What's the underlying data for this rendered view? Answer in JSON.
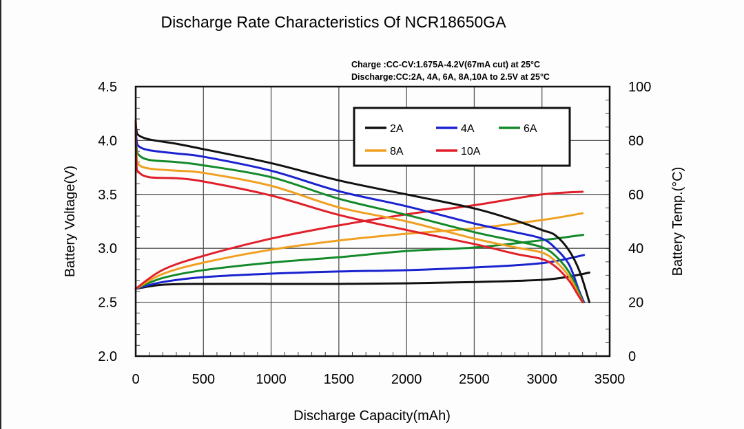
{
  "chart_data": {
    "type": "line",
    "title": "Discharge Rate Characteristics Of NCR18650GA",
    "annotations": [
      "Charge :CC-CV:1.675A-4.2V(67mA cut) at 25°C",
      "Discharge:CC:2A, 4A, 6A, 8A,10A to 2.5V at 25°C"
    ],
    "xlabel": "Discharge Capacity(mAh)",
    "ylabel": "Battery Voltage(V)",
    "y2label": "Battery Temp.(°C)",
    "xlim": [
      0,
      3500
    ],
    "ylim": [
      2.0,
      4.5
    ],
    "y2lim": [
      0,
      100
    ],
    "x_ticks": [
      "0",
      "500",
      "1000",
      "1500",
      "2000",
      "2500",
      "3000",
      "3500"
    ],
    "y_ticks": [
      "2.0",
      "2.5",
      "3.0",
      "3.5",
      "4.0",
      "4.5"
    ],
    "y2_ticks": [
      "0",
      "20",
      "40",
      "60",
      "80",
      "100"
    ],
    "grid": true,
    "legend_position": "top-right",
    "series": [
      {
        "name": "2A",
        "color": "#111111",
        "voltage": {
          "x": [
            0,
            5,
            20,
            100,
            300,
            500,
            1000,
            1500,
            2000,
            2500,
            2800,
            3000,
            3100,
            3200,
            3280,
            3350
          ],
          "y": [
            4.18,
            4.1,
            4.05,
            4.01,
            3.97,
            3.92,
            3.79,
            3.63,
            3.5,
            3.37,
            3.26,
            3.17,
            3.12,
            2.98,
            2.78,
            2.5
          ]
        },
        "temperature": {
          "x": [
            0,
            200,
            500,
            1000,
            1500,
            2000,
            2500,
            3000,
            3200,
            3350
          ],
          "y": [
            25,
            26.5,
            26.8,
            26.8,
            26.8,
            27,
            27.5,
            28.3,
            29.5,
            31
          ]
        }
      },
      {
        "name": "4A",
        "color": "#1a22d0",
        "voltage": {
          "x": [
            0,
            5,
            20,
            100,
            300,
            500,
            1000,
            1500,
            2000,
            2500,
            2800,
            3000,
            3100,
            3200,
            3270,
            3310
          ],
          "y": [
            4.12,
            4.02,
            3.95,
            3.91,
            3.88,
            3.85,
            3.72,
            3.53,
            3.39,
            3.23,
            3.15,
            3.09,
            3.0,
            2.85,
            2.62,
            2.5
          ]
        },
        "temperature": {
          "x": [
            0,
            200,
            500,
            1000,
            1500,
            2000,
            2500,
            3000,
            3310
          ],
          "y": [
            25,
            27.5,
            29.3,
            30.6,
            31.4,
            31.9,
            32.9,
            34.5,
            37.5
          ]
        }
      },
      {
        "name": "6A",
        "color": "#138a2a",
        "voltage": {
          "x": [
            0,
            5,
            20,
            100,
            300,
            500,
            1000,
            1500,
            2000,
            2500,
            2800,
            3000,
            3100,
            3200,
            3270,
            3305
          ],
          "y": [
            4.08,
            3.95,
            3.87,
            3.82,
            3.8,
            3.77,
            3.66,
            3.46,
            3.31,
            3.15,
            3.07,
            3.01,
            2.93,
            2.78,
            2.6,
            2.5
          ]
        },
        "temperature": {
          "x": [
            0,
            200,
            500,
            1000,
            1500,
            2000,
            2500,
            3000,
            3305
          ],
          "y": [
            25,
            29,
            31.9,
            34.7,
            36.7,
            39,
            40.3,
            43,
            45
          ]
        }
      },
      {
        "name": "8A",
        "color": "#f0a020",
        "voltage": {
          "x": [
            0,
            5,
            20,
            100,
            300,
            500,
            1000,
            1500,
            2000,
            2500,
            2800,
            3000,
            3100,
            3200,
            3260,
            3300
          ],
          "y": [
            4.05,
            3.88,
            3.78,
            3.74,
            3.72,
            3.7,
            3.58,
            3.38,
            3.25,
            3.09,
            3.01,
            2.96,
            2.88,
            2.74,
            2.6,
            2.5
          ]
        },
        "temperature": {
          "x": [
            0,
            200,
            500,
            1000,
            1500,
            2000,
            2500,
            3000,
            3300
          ],
          "y": [
            25,
            30.5,
            34.7,
            39.5,
            42.9,
            45.4,
            47.4,
            50.5,
            53
          ]
        }
      },
      {
        "name": "10A",
        "color": "#e0202a",
        "voltage": {
          "x": [
            0,
            5,
            20,
            100,
            300,
            500,
            1000,
            1500,
            2000,
            2500,
            2800,
            3000,
            3100,
            3200,
            3260,
            3300
          ],
          "y": [
            4.19,
            3.8,
            3.71,
            3.66,
            3.65,
            3.62,
            3.49,
            3.31,
            3.17,
            3.04,
            2.95,
            2.9,
            2.83,
            2.7,
            2.58,
            2.5
          ]
        },
        "temperature": {
          "x": [
            0,
            200,
            500,
            1000,
            1500,
            2000,
            2500,
            3000,
            3300
          ],
          "y": [
            25,
            32,
            37.2,
            43.6,
            48.5,
            52.6,
            56,
            60,
            61
          ]
        }
      }
    ]
  }
}
